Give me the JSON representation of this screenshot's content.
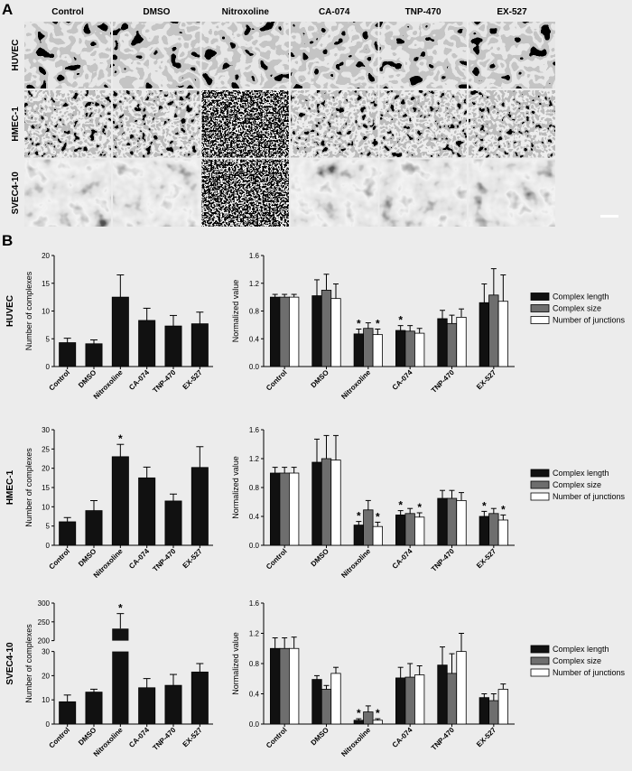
{
  "panel_labels": {
    "a": "A",
    "b": "B"
  },
  "micrograph": {
    "treatments": [
      "Control",
      "DMSO",
      "Nitroxoline",
      "CA-074",
      "TNP-470",
      "EX-527"
    ],
    "cell_lines": [
      "HUVEC",
      "HMEC-1",
      "SVEC4-10"
    ],
    "colors": {
      "background": "#141414",
      "network": "#c8c8c8"
    }
  },
  "chart_data": [
    {
      "type": "bar",
      "cell_line": "HUVEC",
      "categories": [
        "Control",
        "DMSO",
        "Nitroxoline",
        "CA-074",
        "TNP-470",
        "EX-527"
      ],
      "ylabel": "Number of complexes",
      "ylim": [
        0,
        20
      ],
      "yticks": [
        "0",
        "5",
        "10",
        "15",
        "20"
      ],
      "series": [
        {
          "values": [
            4.3,
            4.1,
            12.5,
            8.3,
            7.3,
            7.7
          ],
          "errors": [
            0.8,
            0.7,
            4.0,
            2.2,
            1.9,
            2.1
          ]
        }
      ],
      "significant": [
        false,
        false,
        false,
        false,
        false,
        false
      ],
      "star_label": "*",
      "bar_color": "#111111"
    },
    {
      "type": "bar",
      "cell_line": "HUVEC",
      "categories": [
        "Control",
        "DMSO",
        "Nitroxoline",
        "CA-074",
        "TNP-470",
        "EX-527"
      ],
      "ylabel": "Normalized value",
      "ylim": [
        0,
        1.6
      ],
      "yticks": [
        "0.0",
        "0.4",
        "0.8",
        "1.2",
        "1.6"
      ],
      "series": [
        {
          "name": "Complex length",
          "color": "#111111",
          "values": [
            1.0,
            1.02,
            0.47,
            0.52,
            0.69,
            0.92
          ],
          "errors": [
            0.04,
            0.23,
            0.07,
            0.07,
            0.12,
            0.27
          ],
          "significant": [
            false,
            false,
            true,
            true,
            false,
            false
          ]
        },
        {
          "name": "Complex size",
          "color": "#6e6e6e",
          "values": [
            1.0,
            1.1,
            0.55,
            0.51,
            0.62,
            1.03
          ],
          "errors": [
            0.04,
            0.23,
            0.08,
            0.08,
            0.12,
            0.38
          ],
          "significant": [
            false,
            false,
            false,
            false,
            false,
            false
          ]
        },
        {
          "name": "Number of junctions",
          "color": "#ffffff",
          "values": [
            1.0,
            0.98,
            0.46,
            0.48,
            0.71,
            0.94
          ],
          "errors": [
            0.04,
            0.21,
            0.08,
            0.07,
            0.12,
            0.38
          ],
          "significant": [
            false,
            false,
            true,
            false,
            false,
            false
          ]
        }
      ],
      "star_label": "*"
    },
    {
      "type": "bar",
      "cell_line": "HMEC-1",
      "categories": [
        "Control",
        "DMSO",
        "Nitroxoline",
        "CA-074",
        "TNP-470",
        "EX-527"
      ],
      "ylabel": "Number of complexes",
      "ylim": [
        0,
        30
      ],
      "yticks": [
        "0",
        "5",
        "10",
        "15",
        "20",
        "25",
        "30"
      ],
      "series": [
        {
          "values": [
            6.1,
            9.0,
            23.0,
            17.5,
            11.5,
            20.2
          ],
          "errors": [
            1.1,
            2.6,
            3.2,
            2.8,
            1.8,
            5.4
          ]
        }
      ],
      "significant": [
        false,
        false,
        true,
        false,
        false,
        false
      ],
      "star_label": "*",
      "bar_color": "#111111"
    },
    {
      "type": "bar",
      "cell_line": "HMEC-1",
      "categories": [
        "Control",
        "DMSO",
        "Nitroxoline",
        "CA-074",
        "TNP-470",
        "EX-527"
      ],
      "ylabel": "Normalized value",
      "ylim": [
        0,
        1.6
      ],
      "yticks": [
        "0.0",
        "0.4",
        "0.8",
        "1.2",
        "1.6"
      ],
      "series": [
        {
          "name": "Complex length",
          "color": "#111111",
          "values": [
            1.0,
            1.15,
            0.28,
            0.42,
            0.65,
            0.4
          ],
          "errors": [
            0.08,
            0.32,
            0.05,
            0.06,
            0.11,
            0.07
          ],
          "significant": [
            false,
            false,
            true,
            true,
            false,
            true
          ]
        },
        {
          "name": "Complex size",
          "color": "#6e6e6e",
          "values": [
            1.0,
            1.2,
            0.49,
            0.44,
            0.65,
            0.44
          ],
          "errors": [
            0.08,
            0.32,
            0.13,
            0.07,
            0.11,
            0.07
          ],
          "significant": [
            false,
            false,
            false,
            false,
            false,
            false
          ]
        },
        {
          "name": "Number of junctions",
          "color": "#ffffff",
          "values": [
            1.0,
            1.18,
            0.26,
            0.39,
            0.62,
            0.35
          ],
          "errors": [
            0.08,
            0.34,
            0.06,
            0.06,
            0.11,
            0.07
          ],
          "significant": [
            false,
            false,
            true,
            true,
            false,
            true
          ]
        }
      ],
      "star_label": "*"
    },
    {
      "type": "bar",
      "cell_line": "SVEC4-10",
      "categories": [
        "Control",
        "DMSO",
        "Nitroxoline",
        "CA-074",
        "TNP-470",
        "EX-527"
      ],
      "ylabel": "Number of complexes",
      "broken_axis": true,
      "ylim_lower": [
        0,
        30
      ],
      "ylim_upper": [
        200,
        300
      ],
      "yticks_lower": [
        "0",
        "10",
        "20",
        "30"
      ],
      "yticks_upper": [
        "200",
        "250",
        "300"
      ],
      "series": [
        {
          "values": [
            9.2,
            13.2,
            232,
            15.0,
            16.0,
            21.5
          ],
          "errors": [
            2.8,
            1.2,
            40,
            3.8,
            4.5,
            3.5
          ]
        }
      ],
      "significant": [
        false,
        false,
        true,
        false,
        false,
        false
      ],
      "star_label": "*",
      "bar_color": "#111111"
    },
    {
      "type": "bar",
      "cell_line": "SVEC4-10",
      "categories": [
        "Control",
        "DMSO",
        "Nitroxoline",
        "CA-074",
        "TNP-470",
        "EX-527"
      ],
      "ylabel": "Normalized value",
      "ylim": [
        0,
        1.6
      ],
      "yticks": [
        "0.0",
        "0.4",
        "0.8",
        "1.2",
        "1.6"
      ],
      "series": [
        {
          "name": "Complex length",
          "color": "#111111",
          "values": [
            1.0,
            0.59,
            0.05,
            0.61,
            0.78,
            0.35
          ],
          "errors": [
            0.14,
            0.05,
            0.02,
            0.14,
            0.24,
            0.05
          ],
          "significant": [
            false,
            false,
            true,
            false,
            false,
            false
          ]
        },
        {
          "name": "Complex size",
          "color": "#6e6e6e",
          "values": [
            1.0,
            0.46,
            0.16,
            0.62,
            0.67,
            0.31
          ],
          "errors": [
            0.14,
            0.05,
            0.08,
            0.18,
            0.26,
            0.09
          ],
          "significant": [
            false,
            false,
            false,
            false,
            false,
            false
          ]
        },
        {
          "name": "Number of junctions",
          "color": "#ffffff",
          "values": [
            1.0,
            0.67,
            0.05,
            0.65,
            0.96,
            0.46
          ],
          "errors": [
            0.15,
            0.08,
            0.02,
            0.12,
            0.24,
            0.07
          ],
          "significant": [
            false,
            false,
            true,
            false,
            false,
            false
          ]
        }
      ],
      "star_label": "*"
    }
  ]
}
